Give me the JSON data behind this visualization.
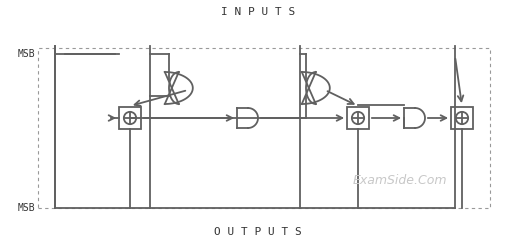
{
  "title_inputs": "I N P U T S",
  "title_outputs": "O U T P U T S",
  "msb_label": "MSB",
  "watermark": "ExamSide.Com",
  "bg_color": "#ffffff",
  "line_color": "#606060",
  "text_color": "#333333",
  "watermark_color": "#c8c8c8",
  "fig_width": 5.16,
  "fig_height": 2.46,
  "dpi": 100
}
